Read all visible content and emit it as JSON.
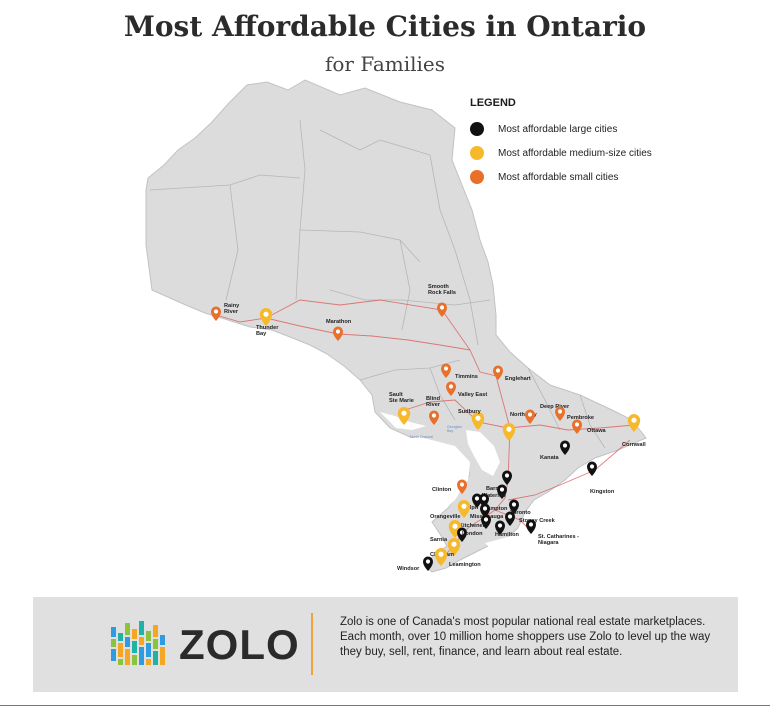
{
  "title": "Most Affordable Cities in Ontario",
  "subtitle": "for Families",
  "legend": {
    "title": "LEGEND",
    "items": [
      {
        "label": "Most affordable large cities",
        "color": "#111111"
      },
      {
        "label": "Most affordable medium-size cities",
        "color": "#f7b92c"
      },
      {
        "label": "Most affordable small cities",
        "color": "#e8702a"
      }
    ]
  },
  "colors": {
    "land": "#dcdcdc",
    "border": "#c2c2c2",
    "road": "#d95c5c",
    "water": "#ffffff",
    "large": "#111111",
    "medium": "#f7b92c",
    "small": "#e8702a"
  },
  "cities": [
    {
      "name": "Rainy\nRiver",
      "type": "small"
    },
    {
      "name": "Thunder\nBay",
      "type": "medium"
    },
    {
      "name": "Marathon",
      "type": "small"
    },
    {
      "name": "Smooth\nRock Falls",
      "type": "small"
    },
    {
      "name": "Timmins",
      "type": "small"
    },
    {
      "name": "Englehart",
      "type": "small"
    },
    {
      "name": "Valley East",
      "type": "small"
    },
    {
      "name": "Sault\nSte Marie",
      "type": "medium"
    },
    {
      "name": "Blind\nRiver",
      "type": "small"
    },
    {
      "name": "Sudbury",
      "type": "medium"
    },
    {
      "name": "North Bay",
      "type": "medium"
    },
    {
      "name": "Deep River",
      "type": "small"
    },
    {
      "name": "Pembroke",
      "type": "small"
    },
    {
      "name": "Ottawa",
      "type": "small"
    },
    {
      "name": "Cornwall",
      "type": "medium"
    },
    {
      "name": "Kanata",
      "type": "large"
    },
    {
      "name": "Kingston",
      "type": "large"
    },
    {
      "name": "Barrie",
      "type": "large"
    },
    {
      "name": "Clinton",
      "type": "small"
    },
    {
      "name": "Waterloo",
      "type": "large"
    },
    {
      "name": "Guelph",
      "type": "large"
    },
    {
      "name": "Brampton",
      "type": "large"
    },
    {
      "name": "Orangeville",
      "type": "medium"
    },
    {
      "name": "Mississauga",
      "type": "large"
    },
    {
      "name": "Toronto",
      "type": "large"
    },
    {
      "name": "Kitchener",
      "type": "large"
    },
    {
      "name": "Stoney Creek",
      "type": "large"
    },
    {
      "name": "Hamilton",
      "type": "large"
    },
    {
      "name": "Sarnia",
      "type": "medium"
    },
    {
      "name": "London",
      "type": "large"
    },
    {
      "name": "St. Catharines -\nNiagara",
      "type": "large"
    },
    {
      "name": "Chatham",
      "type": "medium"
    },
    {
      "name": "Windsor",
      "type": "large"
    },
    {
      "name": "Leamington",
      "type": "medium"
    }
  ],
  "water_labels": [
    "North Channel",
    "Georgian\nBay"
  ],
  "footer": {
    "brand": "ZOLO",
    "text": "Zolo is one of Canada's most popular national real estate marketplaces. Each month, over 10 million home shoppers use Zolo to level up the way they buy, sell, rent, finance, and learn about real estate."
  }
}
